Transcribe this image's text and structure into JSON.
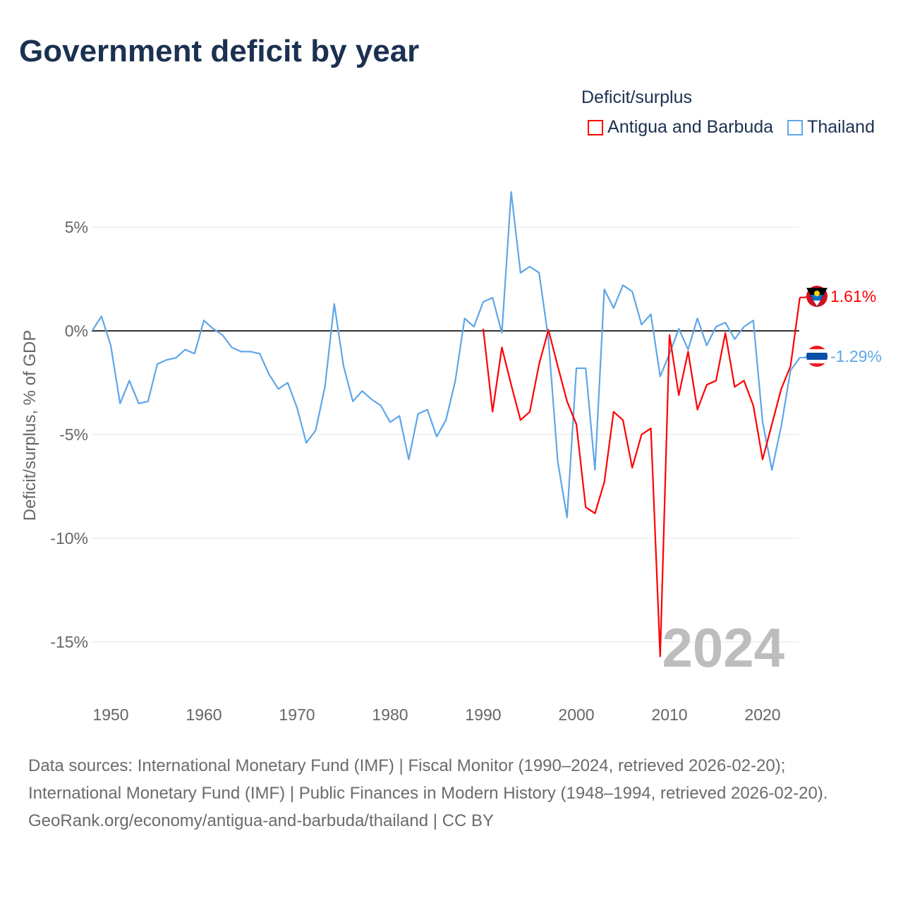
{
  "title": "Government deficit by year",
  "legend": {
    "title": "Deficit/surplus",
    "items": [
      {
        "label": "Antigua and Barbuda",
        "color": "#ff0000"
      },
      {
        "label": "Thailand",
        "color": "#5ea6e8"
      }
    ]
  },
  "year_watermark": "2024",
  "chart_data": {
    "type": "line",
    "title": "Government deficit by year",
    "xlabel": "",
    "ylabel": "Deficit/surplus, % of GDP",
    "xlim": [
      1948,
      2024
    ],
    "ylim": [
      -16.5,
      7.5
    ],
    "xticks": [
      1950,
      1960,
      1970,
      1980,
      1990,
      2000,
      2010,
      2020
    ],
    "xtick_labels": [
      "1950",
      "1960",
      "1970",
      "1980",
      "1990",
      "2000",
      "2010",
      "2020"
    ],
    "yticks": [
      5,
      0,
      -5,
      -10,
      -15
    ],
    "ytick_labels": [
      "5%",
      "0%",
      "-5%",
      "-10%",
      "-15%"
    ],
    "grid": true,
    "series": [
      {
        "name": "Antigua and Barbuda",
        "color": "#ff0000",
        "end_label": "1.61%",
        "x_start": 1990,
        "values": [
          0.1,
          -3.9,
          -0.8,
          -2.6,
          -4.3,
          -3.9,
          -1.6,
          0.05,
          -1.7,
          -3.4,
          -4.5,
          -8.5,
          -8.8,
          -7.3,
          -3.9,
          -4.3,
          -6.6,
          -5.0,
          -4.7,
          -15.7,
          -0.2,
          -3.1,
          -1.0,
          -3.8,
          -2.6,
          -2.4,
          -0.1,
          -2.7,
          -2.4,
          -3.6,
          -6.2,
          -4.5,
          -2.8,
          -1.7,
          1.61
        ]
      },
      {
        "name": "Thailand",
        "color": "#5ea6e8",
        "end_label": "-1.29%",
        "x_start": 1948,
        "values": [
          0,
          0.7,
          -0.7,
          -3.5,
          -2.4,
          -3.5,
          -3.4,
          -1.6,
          -1.4,
          -1.3,
          -0.9,
          -1.1,
          0.5,
          0.1,
          -0.2,
          -0.8,
          -1.0,
          -1.0,
          -1.1,
          -2.1,
          -2.8,
          -2.5,
          -3.7,
          -5.4,
          -4.8,
          -2.7,
          1.3,
          -1.7,
          -3.4,
          -2.9,
          -3.3,
          -3.6,
          -4.4,
          -4.1,
          -6.2,
          -4.0,
          -3.8,
          -5.1,
          -4.3,
          -2.4,
          0.6,
          0.2,
          1.4,
          1.6,
          -0.1,
          6.7,
          2.8,
          3.1,
          2.8,
          -0.4,
          -6.3,
          -9.0,
          -1.8,
          -1.8,
          -6.7,
          2.0,
          1.1,
          2.2,
          1.9,
          0.3,
          0.8,
          -2.2,
          -1.1,
          0.1,
          -0.9,
          0.6,
          -0.7,
          0.2,
          0.4,
          -0.4,
          0.2,
          0.5,
          -4.4,
          -6.7,
          -4.6,
          -1.9,
          -1.29
        ]
      }
    ]
  },
  "footer": {
    "sources": "Data sources: International Monetary Fund (IMF) | Fiscal Monitor (1990–2024, retrieved 2026-02-20); International Monetary Fund (IMF) | Public Finances in Modern History (1948–1994, retrieved 2026-02-20).",
    "attribution": "GeoRank.org/economy/antigua-and-barbuda/thailand | CC BY"
  }
}
